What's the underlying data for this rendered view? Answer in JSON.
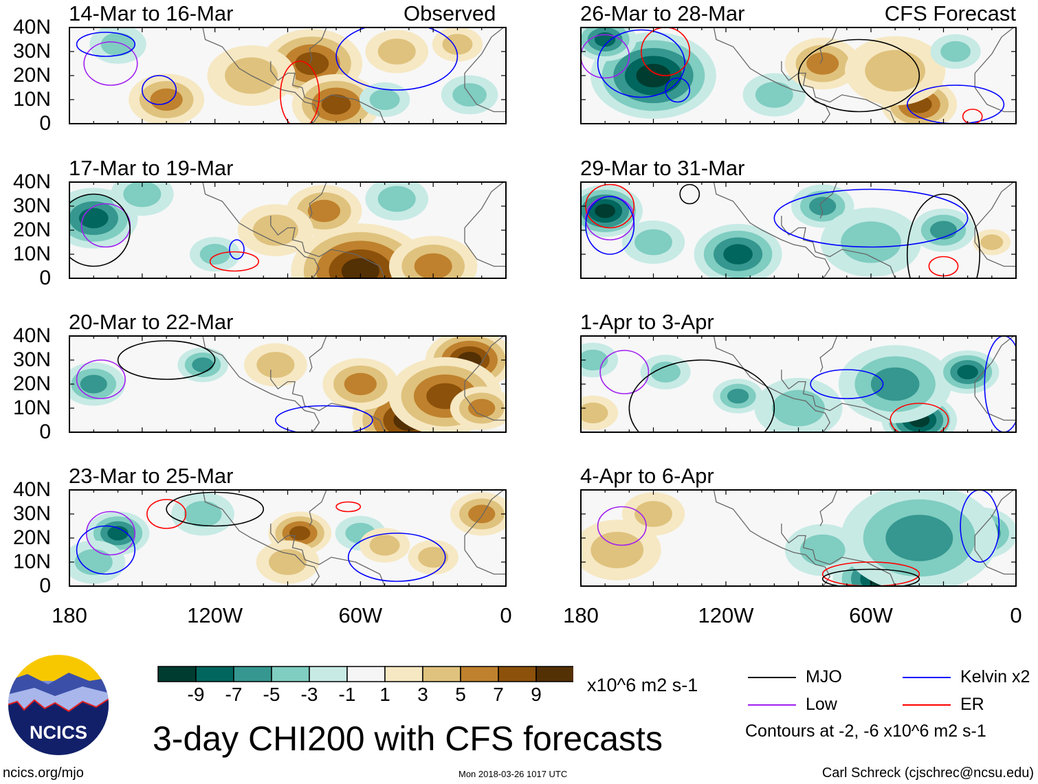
{
  "chart_data": {
    "type": "heatmap",
    "title": "3-day CHI200 with CFS forecasts",
    "units": "x10^6 m2 s-1",
    "lon_range": [
      -180,
      0
    ],
    "lat_range": [
      0,
      40
    ],
    "lat_ticks": [
      "40N",
      "30N",
      "20N",
      "10N",
      "0"
    ],
    "lon_ticks": [
      "180",
      "120W",
      "60W",
      "0"
    ],
    "lon_tick_values": [
      -180,
      -120,
      -60,
      0
    ],
    "colorbar": {
      "levels": [
        "-9",
        "-7",
        "-5",
        "-3",
        "-1",
        "1",
        "3",
        "5",
        "7",
        "9"
      ],
      "colors": [
        "#003c30",
        "#01665e",
        "#35978f",
        "#80cdc1",
        "#c7eae5",
        "#f5f5f5",
        "#f6e8c3",
        "#dfc27d",
        "#bf812d",
        "#8c510a",
        "#543005"
      ]
    },
    "column_labels": {
      "observed": "Observed",
      "forecast": "CFS Forecast"
    },
    "panels": [
      {
        "title": "14-Mar to 16-Mar",
        "col": 0,
        "row": 0,
        "features": [
          [
            -80,
            25,
            7,
            16
          ],
          [
            -70,
            8,
            7,
            14
          ],
          [
            -140,
            10,
            5,
            12
          ],
          [
            -105,
            20,
            3,
            14
          ],
          [
            -160,
            33,
            -3,
            9
          ],
          [
            -50,
            10,
            -3,
            8
          ],
          [
            -15,
            12,
            -3,
            9
          ],
          [
            -45,
            30,
            3,
            10
          ],
          [
            -20,
            33,
            3,
            8
          ]
        ],
        "contours": [
          [
            "Low",
            -163,
            25,
            11,
            9
          ],
          [
            "Kelvin",
            -143,
            14,
            7,
            6
          ],
          [
            "Kelvin",
            -45,
            28,
            25,
            14
          ],
          [
            "ER",
            -85,
            12,
            8,
            14
          ],
          [
            "Kelvin",
            -165,
            33,
            12,
            5
          ]
        ]
      },
      {
        "title": "17-Mar to 19-Mar",
        "col": 0,
        "row": 1,
        "features": [
          [
            -170,
            25,
            -7,
            14
          ],
          [
            -60,
            3,
            9,
            22
          ],
          [
            -75,
            28,
            5,
            12
          ],
          [
            -30,
            5,
            5,
            14
          ],
          [
            -45,
            33,
            -3,
            10
          ],
          [
            -120,
            10,
            -3,
            8
          ],
          [
            -95,
            20,
            3,
            12
          ],
          [
            -150,
            35,
            -3,
            10
          ]
        ],
        "contours": [
          [
            "Low",
            -165,
            22,
            10,
            9
          ],
          [
            "Kelvin",
            -111,
            12,
            3,
            4
          ],
          [
            "ER",
            -112,
            7,
            10,
            4
          ],
          [
            "MJO",
            -170,
            20,
            15,
            15
          ]
        ]
      },
      {
        "title": "20-Mar to 22-Mar",
        "col": 0,
        "row": 2,
        "features": [
          [
            -15,
            30,
            9,
            14
          ],
          [
            -40,
            5,
            9,
            18
          ],
          [
            -25,
            15,
            7,
            18
          ],
          [
            -170,
            20,
            -5,
            10
          ],
          [
            -125,
            28,
            -5,
            8
          ],
          [
            -95,
            28,
            3,
            10
          ],
          [
            -60,
            20,
            5,
            12
          ],
          [
            -10,
            10,
            5,
            10
          ]
        ],
        "contours": [
          [
            "Low",
            -167,
            22,
            10,
            8
          ],
          [
            "MJO",
            -140,
            30,
            20,
            8
          ],
          [
            "Kelvin",
            -75,
            5,
            20,
            6
          ]
        ]
      },
      {
        "title": "23-Mar to 25-Mar",
        "col": 0,
        "row": 3,
        "features": [
          [
            -160,
            22,
            -7,
            10
          ],
          [
            -170,
            10,
            -3,
            10
          ],
          [
            -85,
            22,
            7,
            10
          ],
          [
            -10,
            30,
            5,
            10
          ],
          [
            -60,
            22,
            -3,
            8
          ],
          [
            -50,
            17,
            3,
            8
          ],
          [
            -125,
            30,
            -3,
            10
          ],
          [
            -90,
            10,
            3,
            10
          ],
          [
            -30,
            12,
            3,
            8
          ]
        ],
        "contours": [
          [
            "Low",
            -163,
            22,
            10,
            9
          ],
          [
            "Kelvin",
            -165,
            15,
            12,
            10
          ],
          [
            "ER",
            -140,
            30,
            8,
            6
          ],
          [
            "ER",
            -65,
            33,
            5,
            2
          ],
          [
            "MJO",
            -120,
            32,
            20,
            7
          ],
          [
            "Kelvin",
            -45,
            12,
            20,
            10
          ]
        ]
      },
      {
        "title": "26-Mar to 28-Mar",
        "col": 1,
        "row": 0,
        "features": [
          [
            -150,
            20,
            -9,
            20
          ],
          [
            -170,
            35,
            -7,
            10
          ],
          [
            -100,
            12,
            -3,
            10
          ],
          [
            -80,
            25,
            5,
            12
          ],
          [
            -40,
            8,
            7,
            12
          ],
          [
            -50,
            22,
            3,
            16
          ],
          [
            -25,
            30,
            -3,
            8
          ]
        ],
        "contours": [
          [
            "Low",
            -170,
            28,
            10,
            9
          ],
          [
            "Kelvin",
            -155,
            25,
            18,
            14
          ],
          [
            "ER",
            -145,
            30,
            10,
            10
          ],
          [
            "MJO",
            -65,
            20,
            25,
            15
          ],
          [
            "Kelvin",
            -25,
            8,
            20,
            8
          ],
          [
            "ER",
            -18,
            3,
            4,
            3
          ],
          [
            "Kelvin",
            -140,
            14,
            5,
            5
          ]
        ]
      },
      {
        "title": "29-Mar to 31-Mar",
        "col": 1,
        "row": 1,
        "features": [
          [
            -170,
            28,
            -9,
            12
          ],
          [
            -115,
            10,
            -7,
            14
          ],
          [
            -80,
            30,
            -5,
            10
          ],
          [
            -30,
            20,
            -5,
            10
          ],
          [
            -150,
            15,
            -3,
            10
          ],
          [
            -60,
            15,
            -3,
            16
          ],
          [
            -10,
            15,
            3,
            6
          ]
        ],
        "contours": [
          [
            "Low",
            -168,
            25,
            10,
            9
          ],
          [
            "ER",
            -168,
            30,
            10,
            9
          ],
          [
            "Kelvin",
            -168,
            22,
            10,
            12
          ],
          [
            "MJO",
            -135,
            35,
            4,
            4
          ],
          [
            "Kelvin",
            -60,
            25,
            40,
            12
          ],
          [
            "ER",
            -30,
            5,
            6,
            4
          ],
          [
            "MJO",
            -30,
            10,
            15,
            25
          ]
        ]
      },
      {
        "title": "1-Apr to 3-Apr",
        "col": 1,
        "row": 2,
        "features": [
          [
            -40,
            5,
            -9,
            12
          ],
          [
            -50,
            20,
            -5,
            18
          ],
          [
            -20,
            25,
            -7,
            10
          ],
          [
            -115,
            15,
            -5,
            8
          ],
          [
            -90,
            10,
            -3,
            14
          ],
          [
            -175,
            30,
            -3,
            8
          ],
          [
            -175,
            8,
            3,
            8
          ],
          [
            -145,
            25,
            -3,
            8
          ]
        ],
        "contours": [
          [
            "Low",
            -162,
            25,
            10,
            9
          ],
          [
            "ER",
            -40,
            5,
            12,
            7
          ],
          [
            "MJO",
            -130,
            10,
            30,
            20
          ],
          [
            "Kelvin",
            -70,
            20,
            15,
            6
          ],
          [
            "Kelvin",
            -5,
            20,
            8,
            20
          ]
        ]
      },
      {
        "title": "4-Apr to 6-Apr",
        "col": 1,
        "row": 3,
        "features": [
          [
            -55,
            3,
            -9,
            16
          ],
          [
            -15,
            22,
            -7,
            12
          ],
          [
            -40,
            20,
            -5,
            25
          ],
          [
            -80,
            15,
            -3,
            12
          ],
          [
            -165,
            12,
            7,
            8
          ],
          [
            -165,
            15,
            3,
            14
          ],
          [
            -150,
            30,
            3,
            10
          ]
        ],
        "contours": [
          [
            "Low",
            -163,
            25,
            10,
            8
          ],
          [
            "ER",
            -60,
            5,
            20,
            5
          ],
          [
            "MJO",
            -60,
            3,
            20,
            4
          ],
          [
            "Kelvin",
            -15,
            25,
            8,
            15
          ]
        ]
      }
    ],
    "legend": [
      {
        "name": "MJO",
        "color": "#000000"
      },
      {
        "name": "Kelvin x2",
        "color": "#0000ff"
      },
      {
        "name": "Low",
        "color": "#a020f0"
      },
      {
        "name": "ER",
        "color": "#ff0000"
      }
    ],
    "contour_note": "Contours at -2, -6 x10^6 m2 s-1"
  },
  "footer": {
    "logo_text": "NCICS",
    "url": "ncics.org/mjo",
    "timestamp": "Mon 2018-03-26 1017 UTC",
    "author": "Carl Schreck (cjschrec@ncsu.edu)"
  }
}
